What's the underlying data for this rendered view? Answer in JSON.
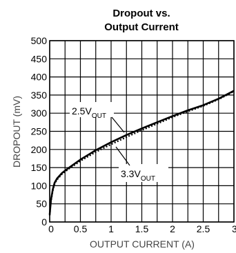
{
  "chart_data": {
    "type": "line",
    "title_line1": "Dropout vs.",
    "title_line2": "Output Current",
    "xlabel": "OUTPUT CURRENT (A)",
    "ylabel": "DROPOUT (mV)",
    "xlim": [
      0,
      3
    ],
    "ylim": [
      0,
      500
    ],
    "x_ticks": [
      "0",
      "0.5",
      "1",
      "1.5",
      "2",
      "2.5",
      "3"
    ],
    "y_ticks": [
      "0",
      "50",
      "100",
      "150",
      "200",
      "250",
      "300",
      "350",
      "400",
      "450",
      "500"
    ],
    "x_tick_values": [
      0,
      0.5,
      1,
      1.5,
      2,
      2.5,
      3
    ],
    "y_tick_values": [
      0,
      50,
      100,
      150,
      200,
      250,
      300,
      350,
      400,
      450,
      500
    ],
    "grid_x": [
      0,
      0.25,
      0.5,
      0.75,
      1,
      1.25,
      1.5,
      1.75,
      2,
      2.25,
      2.5,
      2.75,
      3
    ],
    "grid_y": [
      0,
      50,
      100,
      150,
      200,
      250,
      300,
      350,
      400,
      450,
      500
    ],
    "grid": true,
    "series": [
      {
        "label_main": "2.5V",
        "label_sub": "OUT",
        "style": "solid",
        "x": [
          0,
          0.02,
          0.05,
          0.08,
          0.12,
          0.2,
          0.3,
          0.5,
          0.75,
          1.0,
          1.25,
          1.5,
          1.75,
          2.0,
          2.25,
          2.5,
          2.75,
          3.0
        ],
        "y": [
          20,
          60,
          90,
          108,
          120,
          135,
          148,
          172,
          198,
          220,
          240,
          258,
          275,
          292,
          308,
          322,
          340,
          362
        ]
      },
      {
        "label_main": "3.3V",
        "label_sub": "OUT",
        "style": "dotted",
        "x": [
          0,
          0.02,
          0.05,
          0.08,
          0.12,
          0.2,
          0.3,
          0.5,
          0.75,
          1.0,
          1.25,
          1.5,
          1.75,
          2.0,
          2.25,
          2.5,
          2.75,
          3.0
        ],
        "y": [
          18,
          56,
          86,
          105,
          117,
          132,
          145,
          168,
          193,
          214,
          234,
          253,
          271,
          289,
          305,
          320,
          338,
          360
        ]
      }
    ]
  }
}
